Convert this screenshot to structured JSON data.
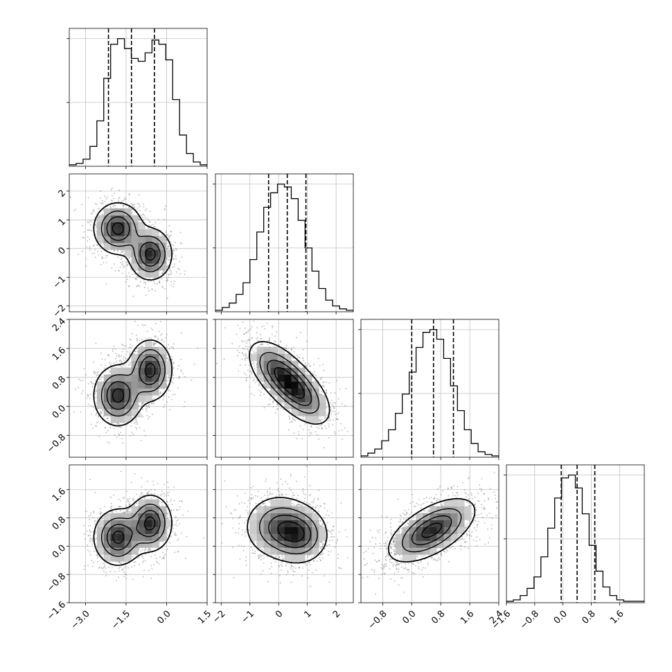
{
  "chart_data": {
    "type": "corner",
    "description_of_style": "grayscale histograms on diagonal with dashed quantile lines; 2D density panels with scatter points, shaded bins and black contours",
    "colors": {
      "lines": "#000000",
      "grid": "#c0c0c0",
      "points": "#777777"
    },
    "grid": true,
    "parameters": [
      {
        "index": 0,
        "range": [
          -3.6,
          1.5
        ],
        "ticks": [
          -3.0,
          -1.5,
          0.0,
          1.5
        ],
        "tick_labels": [
          "−3.0",
          "−1.5",
          "0.0",
          "1.5"
        ],
        "quantiles": [
          -2.15,
          -1.3,
          -0.45
        ]
      },
      {
        "index": 1,
        "range": [
          -2.2,
          2.6
        ],
        "ticks": [
          -2,
          -1,
          0,
          1,
          2
        ],
        "tick_labels": [
          "−2",
          "−1",
          "0",
          "1",
          "2"
        ],
        "quantiles": [
          -0.35,
          0.3,
          0.95
        ]
      },
      {
        "index": 2,
        "range": [
          -1.4,
          2.4
        ],
        "ticks": [
          -0.8,
          0.0,
          0.8,
          1.6,
          2.4
        ],
        "tick_labels": [
          "−0.8",
          "0.0",
          "0.8",
          "1.6",
          "2.4"
        ],
        "quantiles": [
          0.0,
          0.6,
          1.15
        ]
      },
      {
        "index": 3,
        "range": [
          -1.6,
          2.3
        ],
        "ticks": [
          -1.6,
          -0.8,
          0.0,
          0.8,
          1.6
        ],
        "tick_labels": [
          "−1.6",
          "−0.8",
          "0.0",
          "0.8",
          "1.6"
        ],
        "quantiles": [
          -0.05,
          0.4,
          0.9
        ]
      }
    ],
    "histograms": [
      {
        "index": 0,
        "edges_range": [
          -3.6,
          1.5
        ],
        "counts": [
          1,
          2,
          5,
          14,
          32,
          62,
          86,
          90,
          83,
          76,
          74,
          80,
          89,
          86,
          75,
          47,
          22,
          9,
          3,
          1
        ]
      },
      {
        "index": 1,
        "edges_range": [
          -2.2,
          2.6
        ],
        "counts": [
          1,
          3,
          6,
          12,
          20,
          36,
          55,
          72,
          82,
          88,
          86,
          78,
          63,
          44,
          28,
          16,
          8,
          4,
          2,
          1
        ]
      },
      {
        "index": 2,
        "edges_range": [
          -1.4,
          2.4
        ],
        "counts": [
          1,
          3,
          6,
          12,
          20,
          32,
          46,
          62,
          80,
          91,
          93,
          86,
          72,
          52,
          34,
          20,
          10,
          4,
          2,
          1
        ]
      },
      {
        "index": 3,
        "edges_range": [
          -1.6,
          2.3
        ],
        "counts": [
          1,
          2,
          5,
          10,
          18,
          32,
          52,
          73,
          87,
          89,
          80,
          62,
          40,
          22,
          11,
          5,
          2,
          1,
          1,
          1
        ]
      }
    ],
    "pairs": [
      {
        "x": 0,
        "y": 1,
        "modes": [
          {
            "cx": -1.8,
            "cy": 0.7,
            "sx": 0.45,
            "sy": 0.45,
            "rho": 0.0
          },
          {
            "cx": -0.6,
            "cy": -0.2,
            "sx": 0.4,
            "sy": 0.45,
            "rho": 0.0
          }
        ]
      },
      {
        "x": 0,
        "y": 2,
        "modes": [
          {
            "cx": -1.8,
            "cy": 0.3,
            "sx": 0.45,
            "sy": 0.42,
            "rho": 0.0
          },
          {
            "cx": -0.6,
            "cy": 1.0,
            "sx": 0.4,
            "sy": 0.42,
            "rho": 0.0
          }
        ]
      },
      {
        "x": 1,
        "y": 2,
        "modes": [
          {
            "cx": 0.0,
            "cy": 0.95,
            "sx": 0.55,
            "sy": 0.45,
            "rho": -0.55
          },
          {
            "cx": 0.75,
            "cy": 0.35,
            "sx": 0.55,
            "sy": 0.45,
            "rho": -0.55
          }
        ]
      },
      {
        "x": 0,
        "y": 3,
        "modes": [
          {
            "cx": -1.8,
            "cy": 0.25,
            "sx": 0.45,
            "sy": 0.4,
            "rho": 0.0
          },
          {
            "cx": -0.6,
            "cy": 0.65,
            "sx": 0.4,
            "sy": 0.4,
            "rho": 0.0
          }
        ]
      },
      {
        "x": 1,
        "y": 3,
        "modes": [
          {
            "cx": 0.0,
            "cy": 0.55,
            "sx": 0.6,
            "sy": 0.45,
            "rho": 0.0
          },
          {
            "cx": 0.75,
            "cy": 0.3,
            "sx": 0.5,
            "sy": 0.4,
            "rho": 0.0
          }
        ]
      },
      {
        "x": 2,
        "y": 3,
        "modes": [
          {
            "cx": 0.55,
            "cy": 0.45,
            "sx": 0.6,
            "sy": 0.45,
            "rho": 0.6
          }
        ]
      }
    ]
  }
}
